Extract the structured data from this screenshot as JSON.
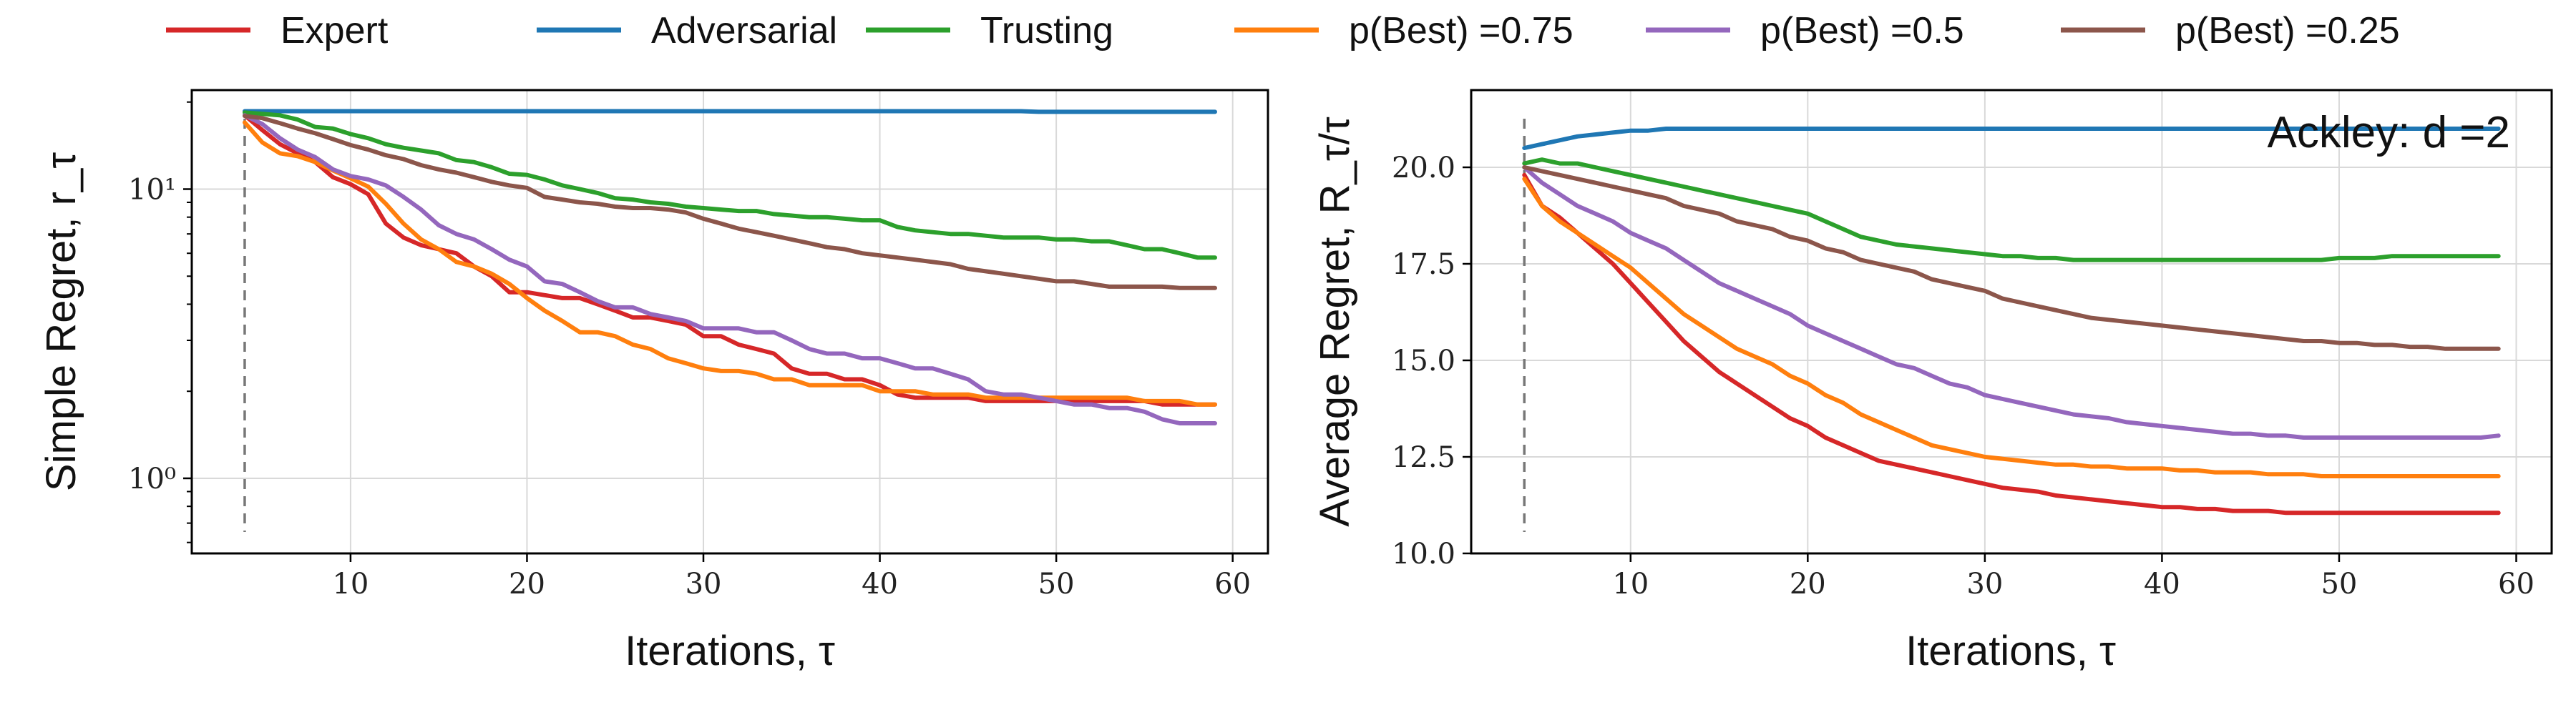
{
  "legend": {
    "placement": "top",
    "entries": [
      {
        "label": "Expert",
        "color": "#d62728"
      },
      {
        "label": "Adversarial",
        "color": "#1f77b4"
      },
      {
        "label": "Trusting",
        "color": "#2ca02c"
      },
      {
        "label": "p(Best) =0.75",
        "color": "#ff7f0e"
      },
      {
        "label": "p(Best) =0.5",
        "color": "#9467bd"
      },
      {
        "label": "p(Best) =0.25",
        "color": "#8c564b"
      }
    ]
  },
  "chart_data": [
    {
      "type": "line",
      "xlabel": "Iterations, τ",
      "ylabel": "Simple Regret, r_τ",
      "yscale": "log",
      "xlim": [
        1,
        62
      ],
      "ylim": [
        0.55,
        22
      ],
      "xticks": [
        10,
        20,
        30,
        40,
        50,
        60
      ],
      "yticks": [
        1,
        10
      ],
      "ytick_labels": [
        "10⁰",
        "10¹"
      ],
      "grid": true,
      "vline_x": 4,
      "x": [
        4,
        5,
        6,
        7,
        8,
        9,
        10,
        11,
        12,
        13,
        14,
        15,
        16,
        17,
        18,
        19,
        20,
        21,
        22,
        23,
        24,
        25,
        26,
        27,
        28,
        29,
        30,
        31,
        32,
        33,
        34,
        35,
        36,
        37,
        38,
        39,
        40,
        41,
        42,
        43,
        44,
        45,
        46,
        47,
        48,
        49,
        50,
        51,
        52,
        53,
        54,
        55,
        56,
        57,
        58,
        59
      ],
      "series": [
        {
          "name": "Expert",
          "color": "#d62728",
          "values": [
            18.0,
            16.0,
            14.3,
            13.3,
            12.4,
            11.0,
            10.4,
            9.6,
            7.6,
            6.8,
            6.4,
            6.2,
            6.0,
            5.4,
            5.0,
            4.4,
            4.4,
            4.3,
            4.2,
            4.2,
            4.0,
            3.8,
            3.6,
            3.6,
            3.5,
            3.4,
            3.1,
            3.1,
            2.9,
            2.8,
            2.7,
            2.4,
            2.3,
            2.3,
            2.2,
            2.2,
            2.1,
            1.95,
            1.9,
            1.9,
            1.9,
            1.9,
            1.85,
            1.85,
            1.85,
            1.85,
            1.85,
            1.85,
            1.85,
            1.85,
            1.85,
            1.85,
            1.8,
            1.8,
            1.8,
            1.8
          ]
        },
        {
          "name": "Adversarial",
          "color": "#1f77b4",
          "values": [
            18.6,
            18.6,
            18.6,
            18.6,
            18.6,
            18.6,
            18.6,
            18.6,
            18.6,
            18.6,
            18.6,
            18.6,
            18.6,
            18.6,
            18.6,
            18.6,
            18.6,
            18.6,
            18.6,
            18.6,
            18.6,
            18.6,
            18.6,
            18.6,
            18.6,
            18.6,
            18.6,
            18.6,
            18.6,
            18.6,
            18.6,
            18.6,
            18.6,
            18.6,
            18.6,
            18.6,
            18.6,
            18.6,
            18.6,
            18.6,
            18.6,
            18.6,
            18.6,
            18.6,
            18.6,
            18.5,
            18.5,
            18.5,
            18.5,
            18.5,
            18.5,
            18.5,
            18.5,
            18.5,
            18.5,
            18.5
          ]
        },
        {
          "name": "Trusting",
          "color": "#2ca02c",
          "values": [
            18.4,
            18.2,
            18.0,
            17.4,
            16.4,
            16.2,
            15.5,
            15.0,
            14.3,
            13.9,
            13.6,
            13.3,
            12.6,
            12.4,
            11.9,
            11.3,
            11.2,
            10.8,
            10.3,
            10.0,
            9.7,
            9.3,
            9.2,
            9.0,
            8.9,
            8.7,
            8.6,
            8.5,
            8.4,
            8.4,
            8.2,
            8.1,
            8.0,
            8.0,
            7.9,
            7.8,
            7.8,
            7.4,
            7.2,
            7.1,
            7.0,
            7.0,
            6.9,
            6.8,
            6.8,
            6.8,
            6.7,
            6.7,
            6.6,
            6.6,
            6.4,
            6.2,
            6.2,
            6.0,
            5.8,
            5.8
          ]
        },
        {
          "name": "p(Best) =0.75",
          "color": "#ff7f0e",
          "values": [
            17.0,
            14.5,
            13.3,
            13.0,
            12.4,
            11.6,
            10.9,
            10.2,
            8.9,
            7.6,
            6.7,
            6.2,
            5.6,
            5.4,
            5.1,
            4.7,
            4.2,
            3.8,
            3.5,
            3.2,
            3.2,
            3.1,
            2.9,
            2.8,
            2.6,
            2.5,
            2.4,
            2.35,
            2.35,
            2.3,
            2.2,
            2.2,
            2.1,
            2.1,
            2.1,
            2.1,
            2.0,
            2.0,
            2.0,
            1.95,
            1.95,
            1.95,
            1.9,
            1.9,
            1.9,
            1.9,
            1.9,
            1.9,
            1.9,
            1.9,
            1.9,
            1.85,
            1.85,
            1.85,
            1.8,
            1.8
          ]
        },
        {
          "name": "p(Best) =0.5",
          "color": "#9467bd",
          "values": [
            18.0,
            16.8,
            15.0,
            13.7,
            12.9,
            11.7,
            11.1,
            10.8,
            10.3,
            9.4,
            8.5,
            7.5,
            7.0,
            6.7,
            6.2,
            5.7,
            5.4,
            4.8,
            4.7,
            4.4,
            4.1,
            3.9,
            3.9,
            3.7,
            3.6,
            3.5,
            3.3,
            3.3,
            3.3,
            3.2,
            3.2,
            3.0,
            2.8,
            2.7,
            2.7,
            2.6,
            2.6,
            2.5,
            2.4,
            2.4,
            2.3,
            2.2,
            2.0,
            1.95,
            1.95,
            1.9,
            1.85,
            1.8,
            1.8,
            1.75,
            1.75,
            1.7,
            1.6,
            1.55,
            1.55,
            1.55
          ]
        },
        {
          "name": "p(Best) =0.25",
          "color": "#8c564b",
          "values": [
            17.9,
            17.6,
            16.9,
            16.2,
            15.6,
            14.9,
            14.2,
            13.7,
            13.1,
            12.7,
            12.1,
            11.7,
            11.4,
            11.0,
            10.6,
            10.3,
            10.1,
            9.4,
            9.2,
            9.0,
            8.9,
            8.7,
            8.6,
            8.6,
            8.5,
            8.3,
            7.9,
            7.6,
            7.3,
            7.1,
            6.9,
            6.7,
            6.5,
            6.3,
            6.2,
            6.0,
            5.9,
            5.8,
            5.7,
            5.6,
            5.5,
            5.3,
            5.2,
            5.1,
            5.0,
            4.9,
            4.8,
            4.8,
            4.7,
            4.6,
            4.6,
            4.6,
            4.6,
            4.55,
            4.55,
            4.55
          ]
        }
      ]
    },
    {
      "type": "line",
      "xlabel": "Iterations, τ",
      "ylabel": "Average Regret, R_τ/τ",
      "yscale": "linear",
      "xlim": [
        1,
        62
      ],
      "ylim": [
        10,
        22
      ],
      "xticks": [
        10,
        20,
        30,
        40,
        50,
        60
      ],
      "yticks": [
        10.0,
        12.5,
        15.0,
        17.5,
        20.0
      ],
      "ytick_labels": [
        "10.0",
        "12.5",
        "15.0",
        "17.5",
        "20.0"
      ],
      "grid": true,
      "vline_x": 4,
      "annotation": "Ackley: d =2",
      "x": [
        4,
        5,
        6,
        7,
        8,
        9,
        10,
        11,
        12,
        13,
        14,
        15,
        16,
        17,
        18,
        19,
        20,
        21,
        22,
        23,
        24,
        25,
        26,
        27,
        28,
        29,
        30,
        31,
        32,
        33,
        34,
        35,
        36,
        37,
        38,
        39,
        40,
        41,
        42,
        43,
        44,
        45,
        46,
        47,
        48,
        49,
        50,
        51,
        52,
        53,
        54,
        55,
        56,
        57,
        58,
        59
      ],
      "series": [
        {
          "name": "Expert",
          "color": "#d62728",
          "values": [
            19.8,
            19.0,
            18.7,
            18.3,
            17.9,
            17.5,
            17.0,
            16.5,
            16.0,
            15.5,
            15.1,
            14.7,
            14.4,
            14.1,
            13.8,
            13.5,
            13.3,
            13.0,
            12.8,
            12.6,
            12.4,
            12.3,
            12.2,
            12.1,
            12.0,
            11.9,
            11.8,
            11.7,
            11.65,
            11.6,
            11.5,
            11.45,
            11.4,
            11.35,
            11.3,
            11.25,
            11.2,
            11.2,
            11.15,
            11.15,
            11.1,
            11.1,
            11.1,
            11.05,
            11.05,
            11.05,
            11.05,
            11.05,
            11.05,
            11.05,
            11.05,
            11.05,
            11.05,
            11.05,
            11.05,
            11.05
          ]
        },
        {
          "name": "Adversarial",
          "color": "#1f77b4",
          "values": [
            20.5,
            20.6,
            20.7,
            20.8,
            20.85,
            20.9,
            20.95,
            20.95,
            21.0,
            21.0,
            21.0,
            21.0,
            21.0,
            21.0,
            21.0,
            21.0,
            21.0,
            21.0,
            21.0,
            21.0,
            21.0,
            21.0,
            21.0,
            21.0,
            21.0,
            21.0,
            21.0,
            21.0,
            21.0,
            21.0,
            21.0,
            21.0,
            21.0,
            21.0,
            21.0,
            21.0,
            21.0,
            21.0,
            21.0,
            21.0,
            21.0,
            21.0,
            21.0,
            21.0,
            21.0,
            21.0,
            21.0,
            21.0,
            21.0,
            21.0,
            21.0,
            21.0,
            21.0,
            21.0,
            21.0,
            21.0
          ]
        },
        {
          "name": "Trusting",
          "color": "#2ca02c",
          "values": [
            20.1,
            20.2,
            20.1,
            20.1,
            20.0,
            19.9,
            19.8,
            19.7,
            19.6,
            19.5,
            19.4,
            19.3,
            19.2,
            19.1,
            19.0,
            18.9,
            18.8,
            18.6,
            18.4,
            18.2,
            18.1,
            18.0,
            17.95,
            17.9,
            17.85,
            17.8,
            17.75,
            17.7,
            17.7,
            17.65,
            17.65,
            17.6,
            17.6,
            17.6,
            17.6,
            17.6,
            17.6,
            17.6,
            17.6,
            17.6,
            17.6,
            17.6,
            17.6,
            17.6,
            17.6,
            17.6,
            17.65,
            17.65,
            17.65,
            17.7,
            17.7,
            17.7,
            17.7,
            17.7,
            17.7,
            17.7
          ]
        },
        {
          "name": "p(Best) =0.75",
          "color": "#ff7f0e",
          "values": [
            19.7,
            19.0,
            18.6,
            18.3,
            18.0,
            17.7,
            17.4,
            17.0,
            16.6,
            16.2,
            15.9,
            15.6,
            15.3,
            15.1,
            14.9,
            14.6,
            14.4,
            14.1,
            13.9,
            13.6,
            13.4,
            13.2,
            13.0,
            12.8,
            12.7,
            12.6,
            12.5,
            12.45,
            12.4,
            12.35,
            12.3,
            12.3,
            12.25,
            12.25,
            12.2,
            12.2,
            12.2,
            12.15,
            12.15,
            12.1,
            12.1,
            12.1,
            12.05,
            12.05,
            12.05,
            12.0,
            12.0,
            12.0,
            12.0,
            12.0,
            12.0,
            12.0,
            12.0,
            12.0,
            12.0,
            12.0
          ]
        },
        {
          "name": "p(Best) =0.5",
          "color": "#9467bd",
          "values": [
            20.0,
            19.6,
            19.3,
            19.0,
            18.8,
            18.6,
            18.3,
            18.1,
            17.9,
            17.6,
            17.3,
            17.0,
            16.8,
            16.6,
            16.4,
            16.2,
            15.9,
            15.7,
            15.5,
            15.3,
            15.1,
            14.9,
            14.8,
            14.6,
            14.4,
            14.3,
            14.1,
            14.0,
            13.9,
            13.8,
            13.7,
            13.6,
            13.55,
            13.5,
            13.4,
            13.35,
            13.3,
            13.25,
            13.2,
            13.15,
            13.1,
            13.1,
            13.05,
            13.05,
            13.0,
            13.0,
            13.0,
            13.0,
            13.0,
            13.0,
            13.0,
            13.0,
            13.0,
            13.0,
            13.0,
            13.05
          ]
        },
        {
          "name": "p(Best) =0.25",
          "color": "#8c564b",
          "values": [
            20.0,
            19.9,
            19.8,
            19.7,
            19.6,
            19.5,
            19.4,
            19.3,
            19.2,
            19.0,
            18.9,
            18.8,
            18.6,
            18.5,
            18.4,
            18.2,
            18.1,
            17.9,
            17.8,
            17.6,
            17.5,
            17.4,
            17.3,
            17.1,
            17.0,
            16.9,
            16.8,
            16.6,
            16.5,
            16.4,
            16.3,
            16.2,
            16.1,
            16.05,
            16.0,
            15.95,
            15.9,
            15.85,
            15.8,
            15.75,
            15.7,
            15.65,
            15.6,
            15.55,
            15.5,
            15.5,
            15.45,
            15.45,
            15.4,
            15.4,
            15.35,
            15.35,
            15.3,
            15.3,
            15.3,
            15.3
          ]
        }
      ]
    }
  ]
}
